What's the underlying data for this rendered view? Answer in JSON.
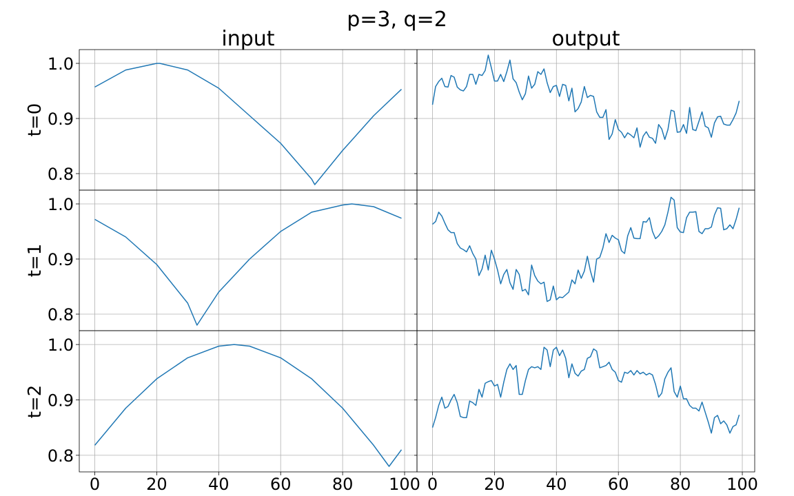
{
  "figure": {
    "suptitle": "p=3, q=2",
    "column_titles": [
      "input",
      "output"
    ],
    "row_labels": [
      "t=0",
      "t=1",
      "t=2"
    ],
    "line_color": "#1f77b4",
    "grid_color": "#b0b0b0"
  },
  "chart_data": [
    {
      "type": "line",
      "panel": "input t=0",
      "series": [
        {
          "x": [
            0,
            10,
            20,
            21,
            30,
            40,
            50,
            60,
            70,
            71,
            80,
            90,
            99
          ],
          "values": [
            0.957,
            0.988,
            1.0,
            1.0,
            0.988,
            0.955,
            0.905,
            0.855,
            0.79,
            0.78,
            0.842,
            0.905,
            0.953
          ]
        }
      ],
      "xlim": [
        -5,
        104
      ],
      "ylim": [
        0.77,
        1.025
      ],
      "yticks": [
        0.8,
        0.9,
        1.0
      ]
    },
    {
      "type": "line",
      "panel": "output t=0",
      "series": [
        {
          "x": [
            0,
            1,
            2,
            3,
            4,
            5,
            6,
            7,
            8,
            9,
            10,
            11,
            12,
            13,
            14,
            15,
            16,
            17,
            18,
            19,
            20,
            21,
            22,
            23,
            24,
            25,
            26,
            27,
            28,
            29,
            30,
            31,
            32,
            33,
            34,
            35,
            36,
            37,
            38,
            39,
            40,
            41,
            42,
            43,
            44,
            45,
            46,
            47,
            48,
            49,
            50,
            51,
            52,
            53,
            54,
            55,
            56,
            57,
            58,
            59,
            60,
            61,
            62,
            63,
            64,
            65,
            66,
            67,
            68,
            69,
            70,
            71,
            72,
            73,
            74,
            75,
            76,
            77,
            78,
            79,
            80,
            81,
            82,
            83,
            84,
            85,
            86,
            87,
            88,
            89,
            90,
            91,
            92,
            93,
            94,
            95,
            96,
            97,
            98,
            99
          ],
          "values": [
            0.925,
            0.958,
            0.967,
            0.973,
            0.958,
            0.957,
            0.978,
            0.975,
            0.957,
            0.952,
            0.95,
            0.958,
            0.98,
            0.98,
            0.962,
            0.98,
            0.978,
            0.987,
            1.015,
            0.992,
            0.968,
            0.968,
            0.98,
            0.967,
            0.985,
            1.006,
            0.972,
            0.965,
            0.948,
            0.934,
            0.945,
            0.977,
            0.955,
            0.962,
            0.985,
            0.98,
            0.99,
            0.965,
            0.947,
            0.958,
            0.96,
            0.94,
            0.962,
            0.96,
            0.932,
            0.955,
            0.912,
            0.918,
            0.93,
            0.958,
            0.938,
            0.942,
            0.94,
            0.912,
            0.902,
            0.902,
            0.916,
            0.862,
            0.872,
            0.898,
            0.88,
            0.875,
            0.865,
            0.874,
            0.87,
            0.865,
            0.883,
            0.848,
            0.868,
            0.876,
            0.866,
            0.864,
            0.855,
            0.889,
            0.881,
            0.862,
            0.88,
            0.915,
            0.913,
            0.875,
            0.876,
            0.889,
            0.873,
            0.92,
            0.88,
            0.878,
            0.895,
            0.912,
            0.886,
            0.883,
            0.866,
            0.892,
            0.903,
            0.904,
            0.89,
            0.888,
            0.888,
            0.898,
            0.91,
            0.932
          ]
        }
      ],
      "xlim": [
        -5,
        104
      ],
      "ylim": [
        0.77,
        1.025
      ],
      "yticks": [
        0.8,
        0.9,
        1.0
      ]
    },
    {
      "type": "line",
      "panel": "input t=1",
      "series": [
        {
          "x": [
            0,
            10,
            20,
            30,
            33,
            40,
            50,
            60,
            70,
            80,
            83,
            90,
            99
          ],
          "values": [
            0.972,
            0.94,
            0.89,
            0.82,
            0.78,
            0.84,
            0.9,
            0.95,
            0.985,
            0.998,
            1.0,
            0.995,
            0.974
          ]
        }
      ],
      "xlim": [
        -5,
        104
      ],
      "ylim": [
        0.77,
        1.025
      ],
      "yticks": [
        0.8,
        0.9,
        1.0
      ]
    },
    {
      "type": "line",
      "panel": "output t=1",
      "series": [
        {
          "x": [
            0,
            1,
            2,
            3,
            4,
            5,
            6,
            7,
            8,
            9,
            10,
            11,
            12,
            13,
            14,
            15,
            16,
            17,
            18,
            19,
            20,
            21,
            22,
            23,
            24,
            25,
            26,
            27,
            28,
            29,
            30,
            31,
            32,
            33,
            34,
            35,
            36,
            37,
            38,
            39,
            40,
            41,
            42,
            43,
            44,
            45,
            46,
            47,
            48,
            49,
            50,
            51,
            52,
            53,
            54,
            55,
            56,
            57,
            58,
            59,
            60,
            61,
            62,
            63,
            64,
            65,
            66,
            67,
            68,
            69,
            70,
            71,
            72,
            73,
            74,
            75,
            76,
            77,
            78,
            79,
            80,
            81,
            82,
            83,
            84,
            85,
            86,
            87,
            88,
            89,
            90,
            91,
            92,
            93,
            94,
            95,
            96,
            97,
            98,
            99
          ],
          "values": [
            0.963,
            0.968,
            0.985,
            0.978,
            0.965,
            0.953,
            0.948,
            0.948,
            0.928,
            0.92,
            0.917,
            0.913,
            0.924,
            0.91,
            0.9,
            0.87,
            0.882,
            0.907,
            0.88,
            0.916,
            0.9,
            0.88,
            0.855,
            0.872,
            0.881,
            0.857,
            0.845,
            0.881,
            0.872,
            0.842,
            0.845,
            0.835,
            0.889,
            0.87,
            0.86,
            0.855,
            0.858,
            0.823,
            0.826,
            0.851,
            0.826,
            0.831,
            0.83,
            0.835,
            0.84,
            0.862,
            0.855,
            0.88,
            0.865,
            0.878,
            0.905,
            0.878,
            0.858,
            0.9,
            0.903,
            0.92,
            0.946,
            0.93,
            0.943,
            0.938,
            0.935,
            0.915,
            0.91,
            0.942,
            0.957,
            0.938,
            0.937,
            0.937,
            0.968,
            0.967,
            0.975,
            0.95,
            0.937,
            0.942,
            0.95,
            0.962,
            0.985,
            1.012,
            1.007,
            0.957,
            0.949,
            0.948,
            0.975,
            0.985,
            0.985,
            0.986,
            0.95,
            0.946,
            0.955,
            0.955,
            0.958,
            0.98,
            0.993,
            0.992,
            0.953,
            0.955,
            0.962,
            0.955,
            0.972,
            0.993
          ]
        }
      ],
      "xlim": [
        -5,
        104
      ],
      "ylim": [
        0.77,
        1.025
      ],
      "yticks": [
        0.8,
        0.9,
        1.0
      ]
    },
    {
      "type": "line",
      "panel": "input t=2",
      "series": [
        {
          "x": [
            0,
            10,
            20,
            30,
            40,
            45,
            50,
            60,
            70,
            80,
            90,
            95,
            99
          ],
          "values": [
            0.818,
            0.885,
            0.938,
            0.976,
            0.997,
            1.0,
            0.997,
            0.976,
            0.938,
            0.885,
            0.818,
            0.78,
            0.81
          ]
        }
      ],
      "xlim": [
        -5,
        104
      ],
      "ylim": [
        0.77,
        1.025
      ],
      "yticks": [
        0.8,
        0.9,
        1.0
      ],
      "xticks": [
        0,
        20,
        40,
        60,
        80,
        100
      ]
    },
    {
      "type": "line",
      "panel": "output t=2",
      "series": [
        {
          "x": [
            0,
            1,
            2,
            3,
            4,
            5,
            6,
            7,
            8,
            9,
            10,
            11,
            12,
            13,
            14,
            15,
            16,
            17,
            18,
            19,
            20,
            21,
            22,
            23,
            24,
            25,
            26,
            27,
            28,
            29,
            30,
            31,
            32,
            33,
            34,
            35,
            36,
            37,
            38,
            39,
            40,
            41,
            42,
            43,
            44,
            45,
            46,
            47,
            48,
            49,
            50,
            51,
            52,
            53,
            54,
            55,
            56,
            57,
            58,
            59,
            60,
            61,
            62,
            63,
            64,
            65,
            66,
            67,
            68,
            69,
            70,
            71,
            72,
            73,
            74,
            75,
            76,
            77,
            78,
            79,
            80,
            81,
            82,
            83,
            84,
            85,
            86,
            87,
            88,
            89,
            90,
            91,
            92,
            93,
            94,
            95,
            96,
            97,
            98,
            99
          ],
          "values": [
            0.85,
            0.868,
            0.89,
            0.905,
            0.885,
            0.888,
            0.9,
            0.91,
            0.895,
            0.87,
            0.868,
            0.868,
            0.898,
            0.895,
            0.89,
            0.919,
            0.905,
            0.93,
            0.933,
            0.935,
            0.925,
            0.928,
            0.905,
            0.932,
            0.955,
            0.965,
            0.955,
            0.962,
            0.91,
            0.91,
            0.935,
            0.955,
            0.96,
            0.958,
            0.96,
            0.955,
            0.995,
            0.99,
            0.96,
            0.99,
            0.995,
            0.98,
            0.99,
            0.975,
            0.94,
            0.965,
            0.948,
            0.943,
            0.952,
            0.955,
            0.975,
            0.978,
            0.992,
            0.988,
            0.958,
            0.96,
            0.962,
            0.968,
            0.955,
            0.95,
            0.935,
            0.932,
            0.95,
            0.948,
            0.953,
            0.945,
            0.953,
            0.947,
            0.95,
            0.945,
            0.948,
            0.945,
            0.928,
            0.905,
            0.912,
            0.938,
            0.95,
            0.958,
            0.915,
            0.905,
            0.925,
            0.902,
            0.902,
            0.89,
            0.885,
            0.885,
            0.88,
            0.896,
            0.878,
            0.86,
            0.84,
            0.868,
            0.872,
            0.857,
            0.862,
            0.855,
            0.84,
            0.852,
            0.855,
            0.873
          ]
        }
      ],
      "xlim": [
        -5,
        104
      ],
      "ylim": [
        0.77,
        1.025
      ],
      "yticks": [
        0.8,
        0.9,
        1.0
      ],
      "xticks": [
        0,
        20,
        40,
        60,
        80,
        100
      ]
    }
  ]
}
